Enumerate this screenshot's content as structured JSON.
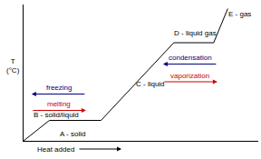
{
  "chart_data": {
    "type": "line",
    "x": [
      0,
      11,
      33,
      64,
      81,
      87
    ],
    "values": [
      0,
      15,
      15,
      72,
      72,
      97
    ],
    "color": "#000000",
    "xlim": [
      0,
      100
    ],
    "ylim": [
      0,
      100
    ],
    "tick_labels": false,
    "grid": false,
    "xlabel": "Heat added",
    "ylabel": "T\n(°C)",
    "annotations": [
      {
        "text": "A - solid",
        "x": 21,
        "y": 5
      },
      {
        "text": "B - solid/liquid",
        "x": 14,
        "y": 19
      },
      {
        "text": "C - liquid",
        "x": 54,
        "y": 42
      },
      {
        "text": "D - liquid gas",
        "x": 73,
        "y": 79
      },
      {
        "text": "E - gas",
        "x": 92,
        "y": 93
      },
      {
        "text": "freezing",
        "x": 15,
        "y": 39,
        "color": "#000080",
        "arrow": "left"
      },
      {
        "text": "melting",
        "x": 15,
        "y": 27,
        "color": "#cc0000",
        "arrow": "right"
      },
      {
        "text": "condensation",
        "x": 71,
        "y": 61,
        "color": "#000080",
        "arrow": "left"
      },
      {
        "text": "vaporization",
        "x": 71,
        "y": 48,
        "color": "#cc0000",
        "arrow": "right"
      }
    ]
  }
}
